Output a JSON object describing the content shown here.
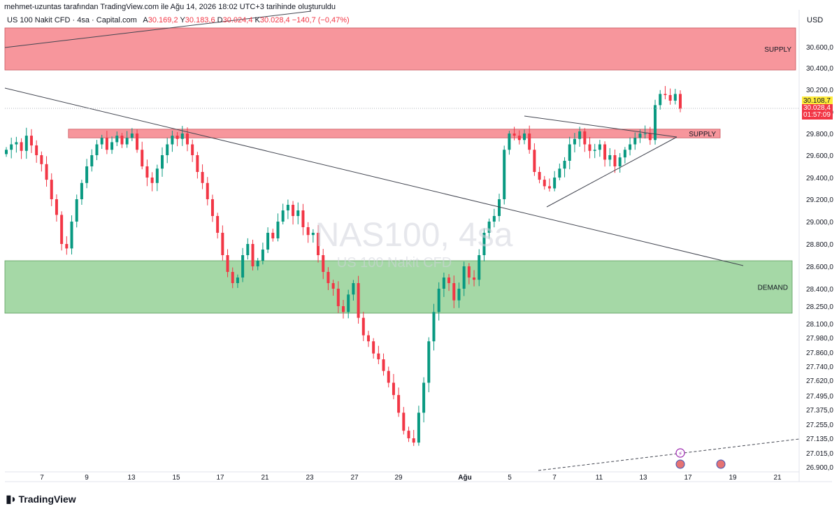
{
  "header": {
    "attribution": "mehmet-uzuntas tarafından TradingView.com ile Ağu 14, 2026 18:02 UTC+3 tarihinde oluşturuldu"
  },
  "symbol": {
    "name": "US 100 Nakit CFD · 4sa · Capital.com",
    "o_label": "A",
    "o": "30.169,2",
    "h_label": "Y",
    "h": "30.183,6",
    "l_label": "D",
    "l": "30.024,4",
    "c_label": "K",
    "c": "30.028,4",
    "change": "−140,7 (−0,47%)"
  },
  "currency": "USD",
  "price_tags": {
    "last": "30.108,7",
    "close": "30.028,4",
    "countdown": "01:57:09"
  },
  "watermark": {
    "ticker": "NAS100, 4sa",
    "name": "US 100 Nakit CFD"
  },
  "zones": [
    {
      "label": "SUPPLY",
      "top": 30780,
      "bottom": 30380,
      "from": 0,
      "to": 1
    },
    {
      "label": "SUPPLY",
      "top": 29840,
      "bottom": 29760,
      "from": 0.08,
      "to": 1
    },
    {
      "label": "DEMAND",
      "top": 28650,
      "bottom": 28190,
      "from": 0,
      "to": 1
    }
  ],
  "footer": {
    "brand": "TradingView",
    "logo": "tradingview-logo"
  },
  "colors": {
    "up": "#089981",
    "down": "#f23645",
    "supply_fill": "#f7969c",
    "demand_fill": "#a5d8a6",
    "last_price": "#ffeb3b"
  },
  "chart_data": {
    "type": "candlestick",
    "y_ticks": [
      "30.600,0",
      "30.400,0",
      "30.200,0",
      "30.000,0",
      "29.800,0",
      "29.600,0",
      "29.400,0",
      "29.200,0",
      "29.000,0",
      "28.800,0",
      "28.600,0",
      "28.400,0",
      "28.250,0",
      "28.100,0",
      "27.980,0",
      "27.860,0",
      "27.740,0",
      "27.620,0",
      "27.495,0",
      "27.375,0",
      "27.255,0",
      "27.135,0",
      "27.015,0",
      "26.900,0"
    ],
    "y_tick_values": [
      30600,
      30400,
      30200,
      30000,
      29800,
      29600,
      29400,
      29200,
      29000,
      28800,
      28600,
      28400,
      28250,
      28100,
      27980,
      27860,
      27740,
      27620,
      27495,
      27375,
      27255,
      27135,
      27015,
      26900
    ],
    "x_ticks": [
      "7",
      "9",
      "13",
      "15",
      "17",
      "21",
      "23",
      "27",
      "29",
      "Ağu",
      "5",
      "7",
      "11",
      "13",
      "17",
      "19",
      "21"
    ],
    "price_path": [
      29650,
      29700,
      29720,
      29640,
      29780,
      29690,
      29600,
      29520,
      29380,
      29200,
      29060,
      28800,
      28760,
      29000,
      29200,
      29350,
      29500,
      29600,
      29700,
      29760,
      29650,
      29720,
      29780,
      29700,
      29760,
      29800,
      29650,
      29500,
      29400,
      29350,
      29480,
      29600,
      29700,
      29780,
      29750,
      29800,
      29700,
      29600,
      29450,
      29350,
      29200,
      29050,
      28900,
      28700,
      28550,
      28450,
      28500,
      28700,
      28800,
      28600,
      28650,
      28750,
      28900,
      28850,
      29000,
      29100,
      29150,
      29050,
      29100,
      28950,
      28880,
      28900,
      28700,
      28550,
      28450,
      28400,
      28250,
      28200,
      28350,
      28450,
      28150,
      28000,
      27950,
      27850,
      27800,
      27700,
      27600,
      27500,
      27350,
      27200,
      27135,
      27100,
      27350,
      27600,
      27950,
      28200,
      28400,
      28500,
      28450,
      28300,
      28400,
      28600,
      28500,
      28480,
      28700,
      28900,
      29000,
      29050,
      29200,
      29650,
      29800,
      29780,
      29740,
      29800,
      29650,
      29450,
      29380,
      29320,
      29300,
      29400,
      29480,
      29550,
      29700,
      29750,
      29820,
      29700,
      29640,
      29650,
      29700,
      29560,
      29600,
      29500,
      29580,
      29650,
      29700,
      29760,
      29800,
      29800,
      29740,
      30060,
      30160,
      30150,
      30100,
      30160,
      30028
    ]
  }
}
